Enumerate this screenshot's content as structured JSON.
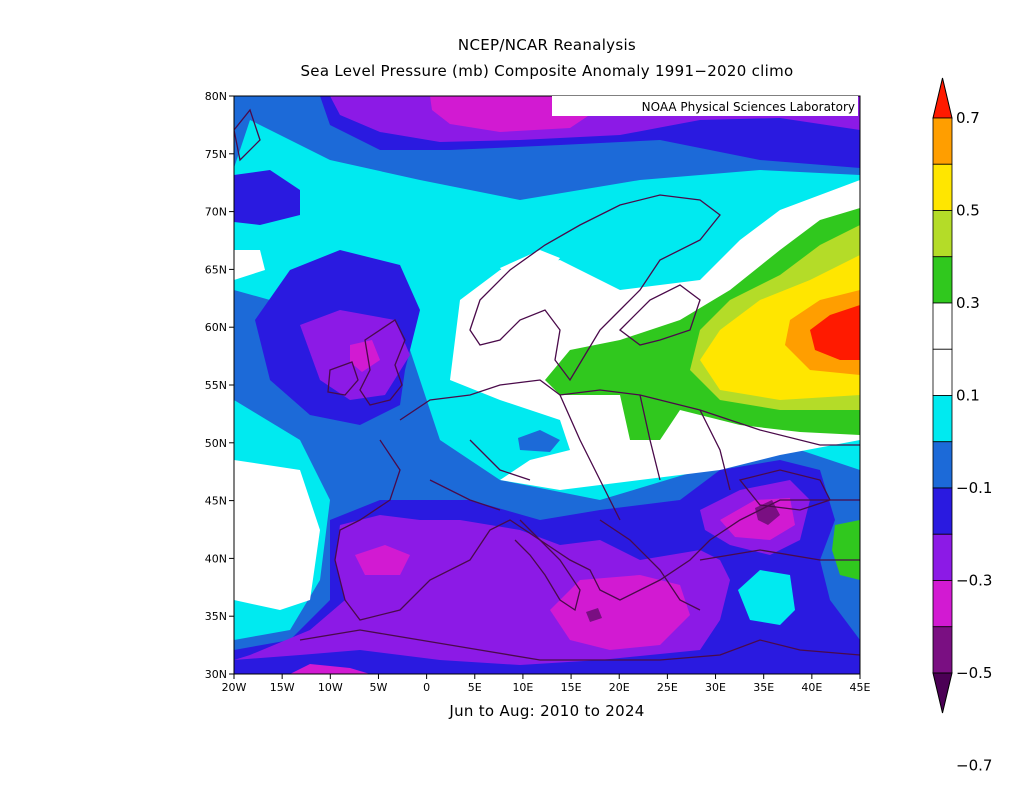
{
  "title_line1": "NCEP/NCAR Reanalysis",
  "title_line2": "Sea Level Pressure (mb) Composite Anomaly 1991−2020 climo",
  "subtitle": "Jun to Aug: 2010 to 2024",
  "credit": "NOAA Physical Sciences Laboratory",
  "map": {
    "lon_range": [
      -20,
      45
    ],
    "lat_range": [
      30,
      80
    ],
    "lon_ticks": [
      "20W",
      "15W",
      "10W",
      "5W",
      "0",
      "5E",
      "10E",
      "15E",
      "20E",
      "25E",
      "30E",
      "35E",
      "40E",
      "45E"
    ],
    "lat_ticks": [
      "80N",
      "75N",
      "70N",
      "65N",
      "60N",
      "55N",
      "50N",
      "45N",
      "40N",
      "35N",
      "30N"
    ]
  },
  "colorbar": {
    "labels": [
      "0.7",
      "0.5",
      "0.3",
      "0.1",
      "−0.1",
      "−0.3",
      "−0.5",
      "−0.7"
    ],
    "colors": [
      "#ff1a00",
      "#ff9e00",
      "#ffe600",
      "#b4dc28",
      "#30c81e",
      "#ffffff",
      "#ffffff",
      "#00eaf0",
      "#1c6ad8",
      "#2a1ae0",
      "#8c1ae6",
      "#d21ad2",
      "#7a0f82",
      "#4b0055"
    ]
  }
}
